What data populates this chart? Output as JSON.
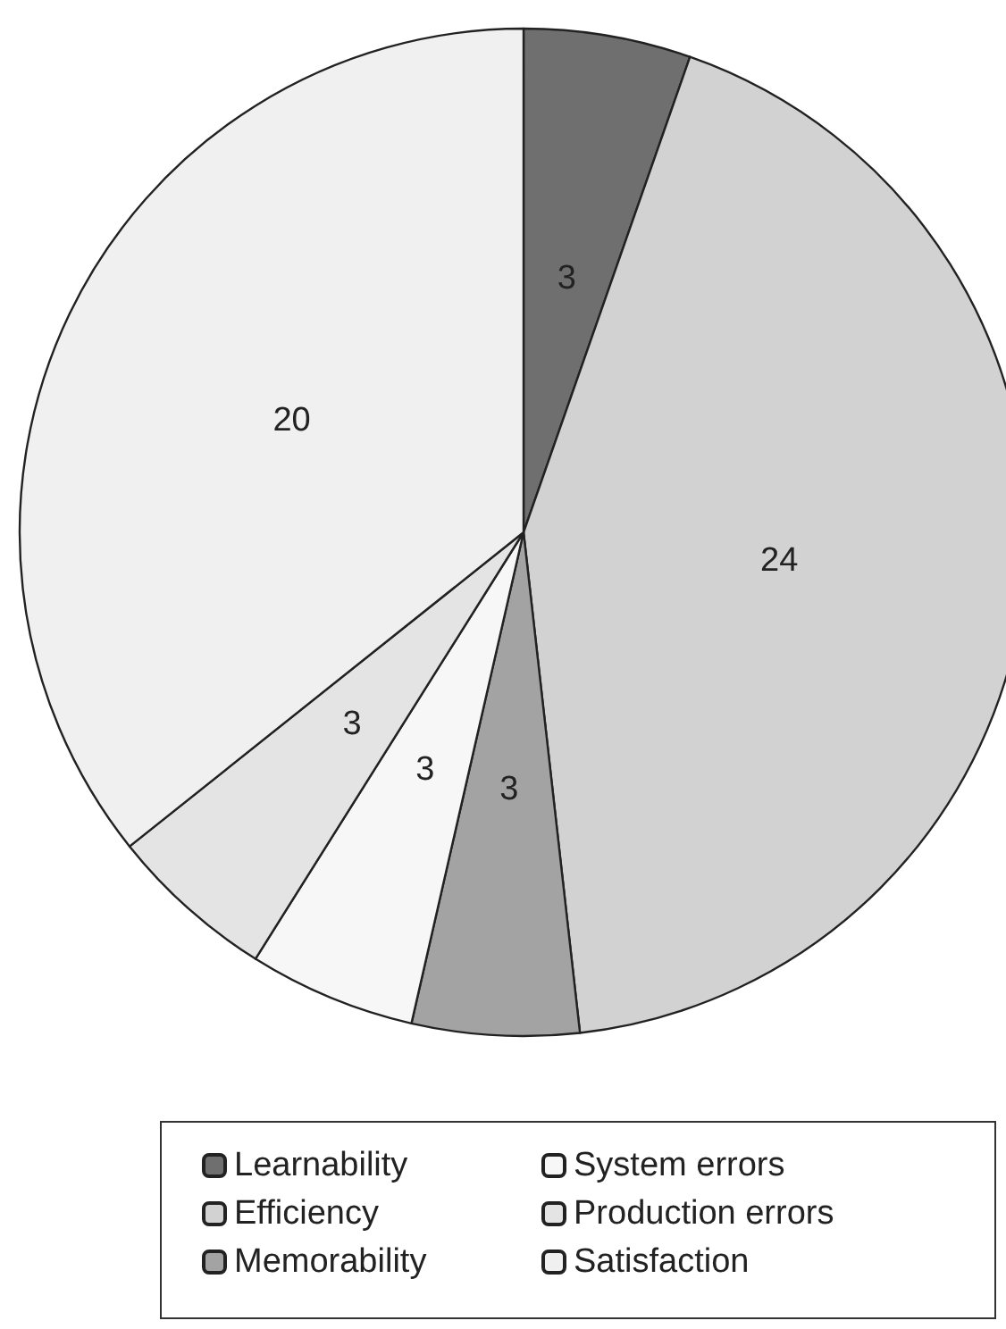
{
  "chart_data": {
    "type": "pie",
    "categories": [
      "Learnability",
      "Efficiency",
      "Memorability",
      "System errors",
      "Production errors",
      "Satisfaction"
    ],
    "values": [
      3,
      24,
      3,
      3,
      3,
      20
    ],
    "colors": [
      "#6f6f6f",
      "#d2d2d2",
      "#a3a3a3",
      "#f7f7f7",
      "#e4e4e4",
      "#f0f0f0"
    ],
    "data_labels": true,
    "legend": "bottom"
  }
}
